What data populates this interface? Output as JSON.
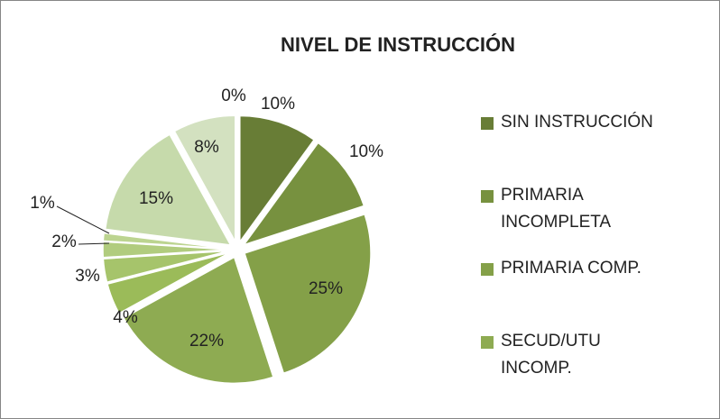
{
  "chart_data": {
    "type": "pie",
    "title": "NIVEL DE INSTRUCCIÓN",
    "categories": [
      "SIN INSTRUCCIÓN",
      "PRIMARIA INCOMPLETA",
      "PRIMARIA COMP.",
      "SECUD/UTU INCOMP.",
      null,
      null,
      null,
      null,
      null,
      null,
      null
    ],
    "values": [
      10,
      10,
      25,
      22,
      4,
      3,
      2,
      1,
      15,
      8,
      0
    ],
    "value_labels": [
      "10%",
      "10%",
      "25%",
      "22%",
      "4%",
      "3%",
      "2%",
      "1%",
      "15%",
      "8%",
      "0%"
    ],
    "colors": [
      "#687d36",
      "#77913f",
      "#84a048",
      "#8eab52",
      "#9bbb59",
      "#a6c46b",
      "#b1cc7e",
      "#bcd490",
      "#c6daab",
      "#d3e1c0",
      "#e1ead5"
    ]
  }
}
